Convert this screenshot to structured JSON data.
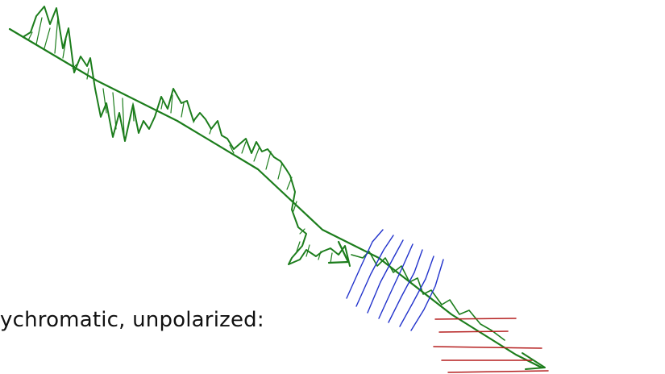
{
  "caption": "ychromatic, unpolarized:",
  "colors": {
    "wave": "#1c7d1c",
    "blue_lines": "#2233cc",
    "red_lines": "#b51f1f",
    "text": "#111111"
  },
  "icons": [
    "wave-arrow-icon",
    "polarizer-lines-icon"
  ]
}
